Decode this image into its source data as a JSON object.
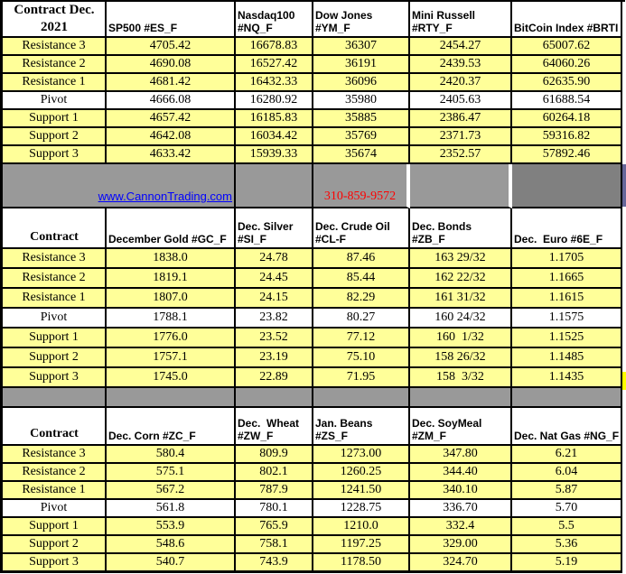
{
  "colors": {
    "highlight_yellow": "#FFFF99",
    "band_gray": "#999999",
    "band_gray_dark": "#808080",
    "link_blue": "#0000FF",
    "phone_red": "#FF0000",
    "edge_purple": "#666699",
    "edge_yellow": "#FFFF00",
    "border_black": "#000000"
  },
  "link": {
    "label": "www.CannonTrading.com"
  },
  "phone": {
    "label": "310-859-9572"
  },
  "sections": [
    {
      "corner": "Contract Dec.\n2021",
      "columns": [
        "SP500 #ES_F",
        "Nasdaq100\n#NQ_F",
        "Dow Jones\n#YM_F",
        "Mini Russell\n#RTY_F",
        "BitCoin Index #BRTI"
      ],
      "rows": [
        {
          "label": "Resistance 3",
          "highlight": true,
          "values": [
            "4705.42",
            "16678.83",
            "36307",
            "2454.27",
            "65007.62"
          ]
        },
        {
          "label": "Resistance 2",
          "highlight": true,
          "values": [
            "4690.08",
            "16527.42",
            "36191",
            "2439.53",
            "64060.26"
          ]
        },
        {
          "label": "Resistance 1",
          "highlight": true,
          "values": [
            "4681.42",
            "16432.33",
            "36096",
            "2420.37",
            "62635.90"
          ]
        },
        {
          "label": "Pivot",
          "highlight": false,
          "values": [
            "4666.08",
            "16280.92",
            "35980",
            "2405.63",
            "61688.54"
          ]
        },
        {
          "label": "Support 1",
          "highlight": true,
          "values": [
            "4657.42",
            "16185.83",
            "35885",
            "2386.47",
            "60264.18"
          ]
        },
        {
          "label": "Support 2",
          "highlight": true,
          "values": [
            "4642.08",
            "16034.42",
            "35769",
            "2371.73",
            "59316.82"
          ]
        },
        {
          "label": "Support 3",
          "highlight": true,
          "values": [
            "4633.42",
            "15939.33",
            "35674",
            "2352.57",
            "57892.46"
          ]
        }
      ]
    },
    {
      "corner": "Contract",
      "columns": [
        "December Gold #GC_F",
        "Dec. Silver\n#SI_F",
        "Dec. Crude Oil\n#CL-F",
        "Dec. Bonds  #ZB_F",
        "Dec.  Euro #6E_F"
      ],
      "rows": [
        {
          "label": "Resistance 3",
          "highlight": true,
          "values": [
            "1838.0",
            "24.78",
            "87.46",
            "163 29/32",
            "1.1705"
          ]
        },
        {
          "label": "Resistance 2",
          "highlight": true,
          "values": [
            "1819.1",
            "24.45",
            "85.44",
            "162 22/32",
            "1.1665"
          ]
        },
        {
          "label": "Resistance 1",
          "highlight": true,
          "values": [
            "1807.0",
            "24.15",
            "82.29",
            "161 31/32",
            "1.1615"
          ]
        },
        {
          "label": "Pivot",
          "highlight": false,
          "values": [
            "1788.1",
            "23.82",
            "80.27",
            "160 24/32",
            "1.1575"
          ]
        },
        {
          "label": "Support 1",
          "highlight": true,
          "values": [
            "1776.0",
            "23.52",
            "77.12",
            "160  1/32",
            "1.1525"
          ]
        },
        {
          "label": "Support 2",
          "highlight": true,
          "values": [
            "1757.1",
            "23.19",
            "75.10",
            "158 26/32",
            "1.1485"
          ]
        },
        {
          "label": "Support 3",
          "highlight": true,
          "values": [
            "1745.0",
            "22.89",
            "71.95",
            "158  3/32",
            "1.1435"
          ]
        }
      ]
    },
    {
      "corner": "Contract",
      "columns": [
        "Dec. Corn #ZC_F",
        "Dec.  Wheat\n#ZW_F",
        "Jan. Beans #ZS_F",
        "Dec. SoyMeal\n#ZM_F",
        "Dec. Nat Gas #NG_F"
      ],
      "rows": [
        {
          "label": "Resistance 3",
          "highlight": true,
          "values": [
            "580.4",
            "809.9",
            "1273.00",
            "347.80",
            "6.21"
          ]
        },
        {
          "label": "Resistance 2",
          "highlight": true,
          "values": [
            "575.1",
            "802.1",
            "1260.25",
            "344.40",
            "6.04"
          ]
        },
        {
          "label": "Resistance 1",
          "highlight": true,
          "values": [
            "567.2",
            "787.9",
            "1241.50",
            "340.10",
            "5.87"
          ]
        },
        {
          "label": "Pivot",
          "highlight": false,
          "values": [
            "561.8",
            "780.1",
            "1228.75",
            "336.70",
            "5.70"
          ]
        },
        {
          "label": "Support 1",
          "highlight": true,
          "values": [
            "553.9",
            "765.9",
            "1210.0",
            "332.4",
            "5.5"
          ]
        },
        {
          "label": "Support 2",
          "highlight": true,
          "values": [
            "548.6",
            "758.1",
            "1197.25",
            "329.00",
            "5.36"
          ]
        },
        {
          "label": "Support 3",
          "highlight": true,
          "values": [
            "540.7",
            "743.9",
            "1178.50",
            "324.70",
            "5.19"
          ]
        }
      ]
    }
  ]
}
